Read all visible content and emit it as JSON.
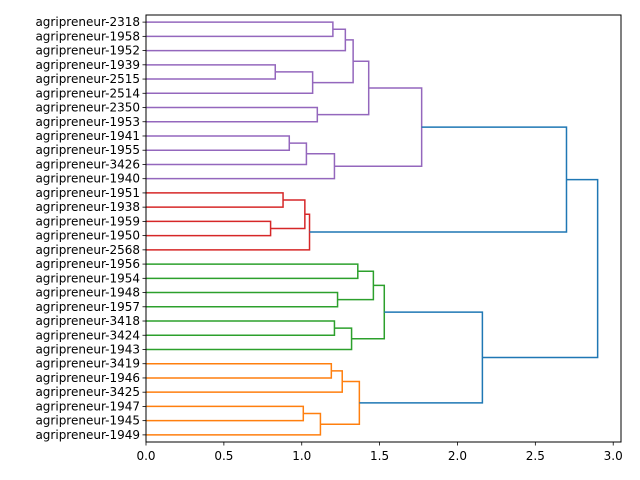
{
  "chart_data": {
    "type": "dendrogram",
    "orientation": "left",
    "title": "",
    "xlabel": "",
    "ylabel": "",
    "xlim": [
      0,
      3.05
    ],
    "x_ticks": [
      "0.0",
      "0.5",
      "1.0",
      "1.5",
      "2.0",
      "2.5",
      "3.0"
    ],
    "x_tick_values": [
      0,
      0.5,
      1.0,
      1.5,
      2.0,
      2.5,
      3.0
    ],
    "grid": false,
    "colors": {
      "purple": "#9467bd",
      "red": "#d62728",
      "green": "#2ca02c",
      "orange": "#ff7f0e",
      "above_threshold": "#1f77b4"
    },
    "leaves": [
      "agripreneur-2318",
      "agripreneur-1958",
      "agripreneur-1952",
      "agripreneur-1939",
      "agripreneur-2515",
      "agripreneur-2514",
      "agripreneur-2350",
      "agripreneur-1953",
      "agripreneur-1941",
      "agripreneur-1955",
      "agripreneur-3426",
      "agripreneur-1940",
      "agripreneur-1951",
      "agripreneur-1938",
      "agripreneur-1959",
      "agripreneur-1950",
      "agripreneur-2568",
      "agripreneur-1956",
      "agripreneur-1954",
      "agripreneur-1948",
      "agripreneur-1957",
      "agripreneur-3418",
      "agripreneur-3424",
      "agripreneur-1943",
      "agripreneur-3419",
      "agripreneur-1946",
      "agripreneur-3425",
      "agripreneur-1947",
      "agripreneur-1945",
      "agripreneur-1949"
    ],
    "merges": [
      {
        "id": "p1",
        "a": 0,
        "b": 1,
        "height": 1.2,
        "color": "purple"
      },
      {
        "id": "p2",
        "a": "p1",
        "b": 2,
        "height": 1.28,
        "color": "purple"
      },
      {
        "id": "p3",
        "a": 3,
        "b": 4,
        "height": 0.83,
        "color": "purple"
      },
      {
        "id": "p4",
        "a": "p3",
        "b": 5,
        "height": 1.07,
        "color": "purple"
      },
      {
        "id": "p5",
        "a": "p2",
        "b": "p4",
        "height": 1.33,
        "color": "purple"
      },
      {
        "id": "p6",
        "a": 6,
        "b": 7,
        "height": 1.1,
        "color": "purple"
      },
      {
        "id": "p7",
        "a": "p5",
        "b": "p6",
        "height": 1.43,
        "color": "purple"
      },
      {
        "id": "p8",
        "a": 8,
        "b": 9,
        "height": 0.92,
        "color": "purple"
      },
      {
        "id": "p9",
        "a": "p8",
        "b": 10,
        "height": 1.03,
        "color": "purple"
      },
      {
        "id": "p10",
        "a": "p9",
        "b": 11,
        "height": 1.21,
        "color": "purple"
      },
      {
        "id": "p11",
        "a": "p7",
        "b": "p10",
        "height": 1.77,
        "color": "purple"
      },
      {
        "id": "r1",
        "a": 12,
        "b": 13,
        "height": 0.88,
        "color": "red"
      },
      {
        "id": "r2",
        "a": 14,
        "b": 15,
        "height": 0.8,
        "color": "red"
      },
      {
        "id": "r3",
        "a": "r1",
        "b": "r2",
        "height": 1.02,
        "color": "red"
      },
      {
        "id": "r4",
        "a": "r3",
        "b": 16,
        "height": 1.05,
        "color": "red"
      },
      {
        "id": "b1",
        "a": "p11",
        "b": "r4",
        "height": 2.7,
        "color": "above_threshold"
      },
      {
        "id": "g1",
        "a": 17,
        "b": 18,
        "height": 1.36,
        "color": "green"
      },
      {
        "id": "g2",
        "a": 19,
        "b": 20,
        "height": 1.23,
        "color": "green"
      },
      {
        "id": "g3",
        "a": "g1",
        "b": "g2",
        "height": 1.46,
        "color": "green"
      },
      {
        "id": "g4",
        "a": 21,
        "b": 22,
        "height": 1.21,
        "color": "green"
      },
      {
        "id": "g5",
        "a": "g4",
        "b": 23,
        "height": 1.32,
        "color": "green"
      },
      {
        "id": "g6",
        "a": "g3",
        "b": "g5",
        "height": 1.53,
        "color": "green"
      },
      {
        "id": "o1",
        "a": 24,
        "b": 25,
        "height": 1.19,
        "color": "orange"
      },
      {
        "id": "o2",
        "a": "o1",
        "b": 26,
        "height": 1.26,
        "color": "orange"
      },
      {
        "id": "o3",
        "a": 27,
        "b": 28,
        "height": 1.01,
        "color": "orange"
      },
      {
        "id": "o4",
        "a": "o3",
        "b": 29,
        "height": 1.12,
        "color": "orange"
      },
      {
        "id": "o5",
        "a": "o2",
        "b": "o4",
        "height": 1.37,
        "color": "orange"
      },
      {
        "id": "b2",
        "a": "g6",
        "b": "o5",
        "height": 2.16,
        "color": "above_threshold"
      },
      {
        "id": "b3",
        "a": "b1",
        "b": "b2",
        "height": 2.9,
        "color": "above_threshold"
      }
    ]
  }
}
